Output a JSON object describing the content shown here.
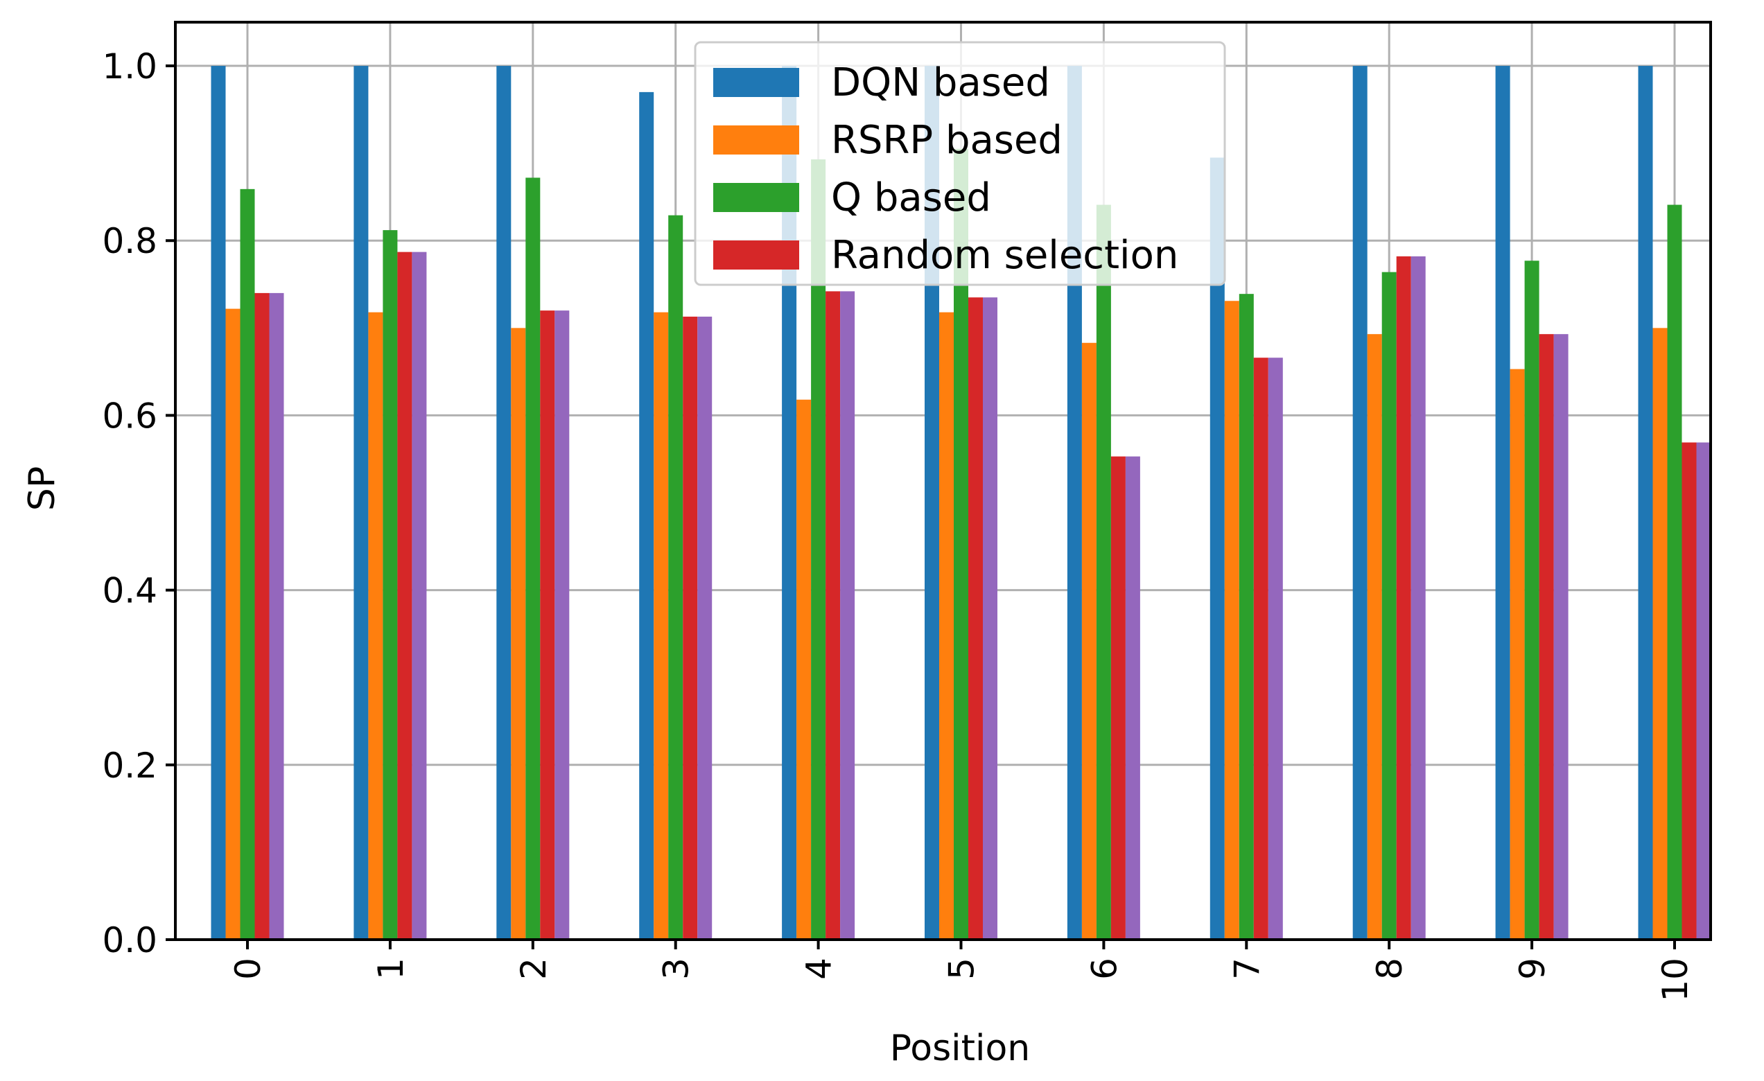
{
  "chart_data": {
    "type": "bar",
    "title": "",
    "xlabel": "Position",
    "ylabel": "SP",
    "ylim": [
      0,
      1.05
    ],
    "yticks": [
      "0.0",
      "0.2",
      "0.4",
      "0.6",
      "0.8",
      "1.0"
    ],
    "ytick_values": [
      0,
      0.2,
      0.4,
      0.6,
      0.8,
      1.0
    ],
    "categories": [
      "0",
      "1",
      "2",
      "3",
      "4",
      "5",
      "6",
      "7",
      "8",
      "9",
      "10"
    ],
    "grid": true,
    "legend_position": "top-center",
    "series": [
      {
        "name": "DQN based",
        "color": "#1f77b4",
        "values": [
          1.0,
          1.0,
          1.0,
          0.97,
          1.0,
          1.0,
          1.0,
          0.895,
          1.0,
          1.0,
          1.0
        ]
      },
      {
        "name": "RSRP based",
        "color": "#ff7f0e",
        "values": [
          0.722,
          0.718,
          0.7,
          0.718,
          0.618,
          0.718,
          0.683,
          0.731,
          0.693,
          0.653,
          0.7
        ]
      },
      {
        "name": "Q based",
        "color": "#2ca02c",
        "values": [
          0.859,
          0.812,
          0.872,
          0.829,
          0.893,
          0.905,
          0.841,
          0.739,
          0.764,
          0.777,
          0.841
        ]
      },
      {
        "name": "Random selection",
        "color": "#d62728",
        "values": [
          0.74,
          0.787,
          0.72,
          0.713,
          0.742,
          0.735,
          0.553,
          0.666,
          0.782,
          0.693,
          0.569
        ]
      },
      {
        "name": "",
        "color": "#9467bd",
        "values": [
          0.74,
          0.787,
          0.72,
          0.713,
          0.742,
          0.735,
          0.553,
          0.666,
          0.782,
          0.693,
          0.569
        ]
      }
    ]
  }
}
